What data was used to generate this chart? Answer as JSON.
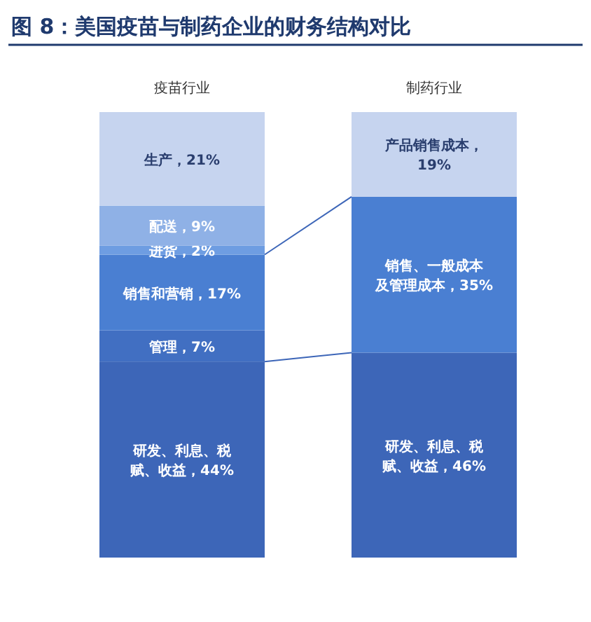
{
  "chart_data": {
    "type": "bar",
    "title": "图 8：美国疫苗与制药企业的财务结构对比",
    "categories": [
      "疫苗行业",
      "制药行业"
    ],
    "stacked": true,
    "series": [
      {
        "color": "#3d66b8",
        "values": [
          44,
          46
        ],
        "value_labels": [
          "研发、利息、税赋、收益，44%",
          "研发、利息、税赋、收益，46%"
        ]
      },
      {
        "color": "#416fc2",
        "values": [
          7,
          null
        ],
        "value_labels": [
          "管理，7%",
          null
        ]
      },
      {
        "color": "#4a7fd2",
        "values": [
          17,
          35
        ],
        "value_labels": [
          "销售和营销，17%",
          "销售、一般成本及管理成本，35%"
        ]
      },
      {
        "color": "#6e9de2",
        "values": [
          2,
          null
        ],
        "value_labels": [
          "进货，2%",
          null
        ]
      },
      {
        "color": "#8fb1e6",
        "values": [
          9,
          null
        ],
        "value_labels": [
          "配送，9%",
          null
        ]
      },
      {
        "color": "#c6d4ef",
        "values": [
          21,
          19
        ],
        "value_labels": [
          "生产，21%",
          "产品销售成本，19%"
        ]
      }
    ]
  }
}
